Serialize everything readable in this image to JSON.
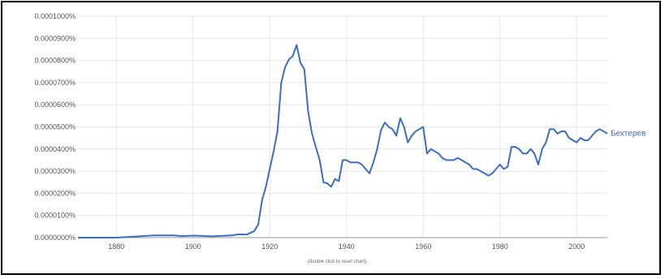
{
  "chart_data": {
    "type": "line",
    "title": "",
    "xlabel": "",
    "ylabel": "",
    "xlim": [
      1870,
      2008
    ],
    "ylim": [
      0,
      1e-06
    ],
    "x_ticks": [
      {
        "value": 1880,
        "label": "1880"
      },
      {
        "value": 1900,
        "label": "1900"
      },
      {
        "value": 1920,
        "label": "1920"
      },
      {
        "value": 1940,
        "label": "1940"
      },
      {
        "value": 1960,
        "label": "1960"
      },
      {
        "value": 1980,
        "label": "1980"
      },
      {
        "value": 2000,
        "label": "2000"
      }
    ],
    "y_ticks": [
      {
        "value": 0.0,
        "label": "0.0000000%"
      },
      {
        "value": 1e-07,
        "label": "0.0000100%"
      },
      {
        "value": 2e-07,
        "label": "0.0000200%"
      },
      {
        "value": 3e-07,
        "label": "0.0000300%"
      },
      {
        "value": 4e-07,
        "label": "0.0000400%"
      },
      {
        "value": 5e-07,
        "label": "0.0000500%"
      },
      {
        "value": 6e-07,
        "label": "0.0000600%"
      },
      {
        "value": 7e-07,
        "label": "0.0000700%"
      },
      {
        "value": 8e-07,
        "label": "0.0000800%"
      },
      {
        "value": 9e-07,
        "label": "0.0000900%"
      },
      {
        "value": 1e-06,
        "label": "0.0001000%"
      }
    ],
    "grid": true,
    "legend": "label at end of line",
    "footnote": "(double click to reset chart)",
    "series": [
      {
        "name": "Бехтерев",
        "color": "#3d6dc4",
        "x": [
          1870,
          1880,
          1885,
          1888,
          1890,
          1895,
          1897,
          1900,
          1905,
          1910,
          1912,
          1914,
          1916,
          1917,
          1918,
          1919,
          1920,
          1921,
          1922,
          1923,
          1924,
          1925,
          1926,
          1927,
          1928,
          1929,
          1930,
          1931,
          1932,
          1933,
          1934,
          1935,
          1936,
          1937,
          1938,
          1939,
          1940,
          1941,
          1942,
          1943,
          1944,
          1945,
          1946,
          1947,
          1948,
          1949,
          1950,
          1951,
          1952,
          1953,
          1954,
          1955,
          1956,
          1957,
          1958,
          1959,
          1960,
          1961,
          1962,
          1963,
          1964,
          1965,
          1966,
          1967,
          1968,
          1969,
          1970,
          1971,
          1972,
          1973,
          1974,
          1975,
          1976,
          1977,
          1978,
          1979,
          1980,
          1981,
          1982,
          1983,
          1984,
          1985,
          1986,
          1987,
          1988,
          1989,
          1990,
          1991,
          1992,
          1993,
          1994,
          1995,
          1996,
          1997,
          1998,
          1999,
          2000,
          2001,
          2002,
          2003,
          2004,
          2005,
          2006,
          2007,
          2008
        ],
        "values": [
          0,
          0,
          5e-09,
          8e-09,
          1e-08,
          1e-08,
          7e-09,
          9e-09,
          6e-09,
          1e-08,
          1.5e-08,
          1.4e-08,
          3e-08,
          6e-08,
          1.7e-07,
          2.3e-07,
          3.1e-07,
          3.9e-07,
          4.8e-07,
          7e-07,
          7.7e-07,
          8.05e-07,
          8.2e-07,
          8.7e-07,
          7.9e-07,
          7.6e-07,
          5.7e-07,
          4.7e-07,
          4.1e-07,
          3.5e-07,
          2.5e-07,
          2.45e-07,
          2.3e-07,
          2.65e-07,
          2.55e-07,
          3.5e-07,
          3.5e-07,
          3.4e-07,
          3.4e-07,
          3.4e-07,
          3.3e-07,
          3.1e-07,
          2.9e-07,
          3.4e-07,
          4e-07,
          4.85e-07,
          5.2e-07,
          5e-07,
          4.9e-07,
          4.6e-07,
          5.4e-07,
          5e-07,
          4.3e-07,
          4.6e-07,
          4.8e-07,
          4.9e-07,
          5e-07,
          3.8e-07,
          4e-07,
          3.9e-07,
          3.8e-07,
          3.6e-07,
          3.5e-07,
          3.5e-07,
          3.5e-07,
          3.6e-07,
          3.5e-07,
          3.4e-07,
          3.3e-07,
          3.1e-07,
          3.1e-07,
          3e-07,
          2.9e-07,
          2.8e-07,
          2.9e-07,
          3.1e-07,
          3.3e-07,
          3.1e-07,
          3.2e-07,
          4.1e-07,
          4.1e-07,
          4e-07,
          3.8e-07,
          3.8e-07,
          4e-07,
          3.8e-07,
          3.3e-07,
          4e-07,
          4.3e-07,
          4.9e-07,
          4.9e-07,
          4.7e-07,
          4.8e-07,
          4.8e-07,
          4.5e-07,
          4.4e-07,
          4.3e-07,
          4.5e-07,
          4.4e-07,
          4.4e-07,
          4.6e-07,
          4.8e-07,
          4.9e-07,
          4.8e-07,
          4.7e-07
        ]
      }
    ]
  }
}
